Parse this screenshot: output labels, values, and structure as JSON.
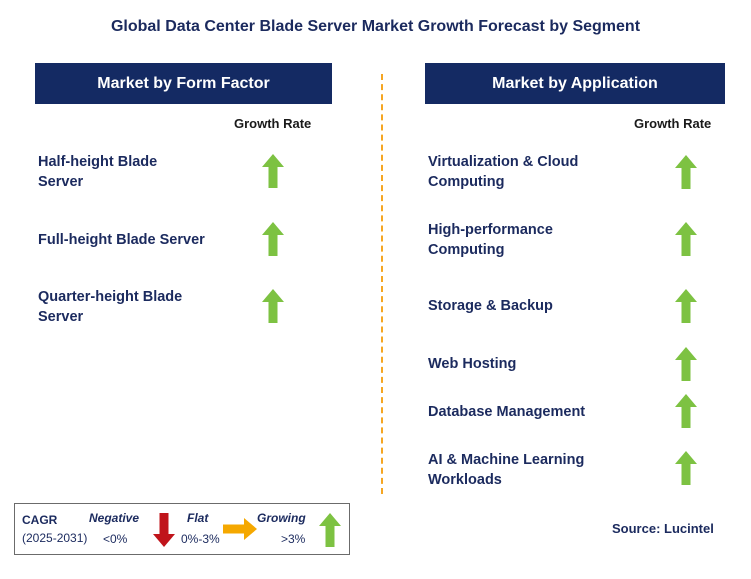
{
  "title": "Global Data Center Blade Server Market Growth Forecast by Segment",
  "left_panel": {
    "header": "Market by Form Factor",
    "growth_header": "Growth Rate",
    "items": [
      {
        "label_line1": "Half-height Blade",
        "label_line2": "Server",
        "trend": "growing"
      },
      {
        "label_line1": "Full-height Blade Server",
        "label_line2": "",
        "trend": "growing"
      },
      {
        "label_line1": "Quarter-height Blade",
        "label_line2": "Server",
        "trend": "growing"
      }
    ]
  },
  "right_panel": {
    "header": "Market by Application",
    "growth_header": "Growth Rate",
    "items": [
      {
        "label_line1": "Virtualization & Cloud",
        "label_line2": "Computing",
        "trend": "growing"
      },
      {
        "label_line1": "High-performance",
        "label_line2": "Computing",
        "trend": "growing"
      },
      {
        "label_line1": "Storage & Backup",
        "label_line2": "",
        "trend": "growing"
      },
      {
        "label_line1": "Web Hosting",
        "label_line2": "",
        "trend": "growing"
      },
      {
        "label_line1": "Database Management",
        "label_line2": "",
        "trend": "growing"
      },
      {
        "label_line1": "AI & Machine Learning",
        "label_line2": "Workloads",
        "trend": "growing"
      }
    ]
  },
  "legend": {
    "cagr_label": "CAGR",
    "period": "(2025-2031)",
    "negative_label": "Negative",
    "negative_range": "<0%",
    "flat_label": "Flat",
    "flat_range": "0%-3%",
    "growing_label": "Growing",
    "growing_range": ">3%"
  },
  "source": "Source: Lucintel",
  "colors": {
    "header_bg": "#142a63",
    "text": "#1b2a5e",
    "growing": "#7dc242",
    "negative": "#c0141b",
    "flat": "#f5a800",
    "divider": "#f5a623"
  }
}
